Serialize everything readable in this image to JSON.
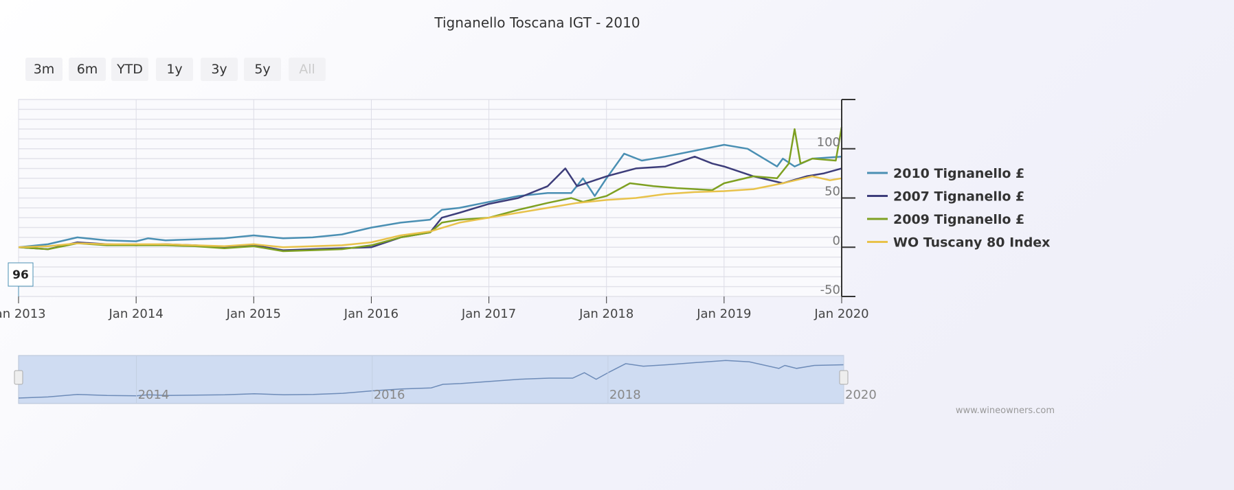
{
  "chart_data": {
    "type": "line",
    "title": "Tignanello Toscana IGT - 2010",
    "range_buttons": [
      "3m",
      "6m",
      "YTD",
      "1y",
      "3y",
      "5y",
      "All"
    ],
    "active_range": "All",
    "xlabel": "",
    "ylabel": "",
    "x_ticks": [
      "Jan 2013",
      "Jan 2014",
      "Jan 2015",
      "Jan 2016",
      "Jan 2017",
      "Jan 2018",
      "Jan 2019",
      "Jan 2020"
    ],
    "y_ticks": [
      -50,
      0,
      50,
      100
    ],
    "ylim": [
      -50,
      150
    ],
    "xlim": [
      "2013-01",
      "2020-01"
    ],
    "grid": true,
    "legend_position": "right",
    "flag_label": "96",
    "navigator_ticks": [
      "2014",
      "2016",
      "2018",
      "2020"
    ],
    "credit": "www.wineowners.com",
    "series": [
      {
        "name": "2010 Tignanello £",
        "color": "#4a8fb3",
        "points": [
          [
            2013.0,
            0
          ],
          [
            2013.25,
            3
          ],
          [
            2013.5,
            10
          ],
          [
            2013.75,
            7
          ],
          [
            2014.0,
            6
          ],
          [
            2014.1,
            9
          ],
          [
            2014.25,
            7
          ],
          [
            2014.5,
            8
          ],
          [
            2014.75,
            9
          ],
          [
            2015.0,
            12
          ],
          [
            2015.25,
            9
          ],
          [
            2015.5,
            10
          ],
          [
            2015.75,
            13
          ],
          [
            2016.0,
            20
          ],
          [
            2016.25,
            25
          ],
          [
            2016.5,
            28
          ],
          [
            2016.6,
            38
          ],
          [
            2016.75,
            40
          ],
          [
            2017.0,
            46
          ],
          [
            2017.25,
            52
          ],
          [
            2017.5,
            55
          ],
          [
            2017.7,
            55
          ],
          [
            2017.8,
            70
          ],
          [
            2017.9,
            52
          ],
          [
            2018.0,
            70
          ],
          [
            2018.15,
            95
          ],
          [
            2018.3,
            88
          ],
          [
            2018.5,
            92
          ],
          [
            2018.75,
            98
          ],
          [
            2019.0,
            104
          ],
          [
            2019.2,
            100
          ],
          [
            2019.45,
            82
          ],
          [
            2019.5,
            90
          ],
          [
            2019.6,
            82
          ],
          [
            2019.75,
            90
          ],
          [
            2020.0,
            92
          ]
        ]
      },
      {
        "name": "2007 Tignanello £",
        "color": "#3d3d7a",
        "points": [
          [
            2013.0,
            0
          ],
          [
            2013.25,
            -2
          ],
          [
            2013.5,
            5
          ],
          [
            2013.75,
            3
          ],
          [
            2014.0,
            2
          ],
          [
            2014.25,
            3
          ],
          [
            2014.5,
            2
          ],
          [
            2014.75,
            0
          ],
          [
            2015.0,
            2
          ],
          [
            2015.25,
            -3
          ],
          [
            2015.5,
            -2
          ],
          [
            2015.75,
            -1
          ],
          [
            2016.0,
            0
          ],
          [
            2016.25,
            10
          ],
          [
            2016.5,
            15
          ],
          [
            2016.6,
            30
          ],
          [
            2016.75,
            35
          ],
          [
            2017.0,
            44
          ],
          [
            2017.25,
            50
          ],
          [
            2017.5,
            62
          ],
          [
            2017.65,
            80
          ],
          [
            2017.75,
            62
          ],
          [
            2018.0,
            72
          ],
          [
            2018.25,
            80
          ],
          [
            2018.5,
            82
          ],
          [
            2018.75,
            92
          ],
          [
            2018.9,
            85
          ],
          [
            2019.0,
            82
          ],
          [
            2019.25,
            72
          ],
          [
            2019.5,
            65
          ],
          [
            2019.7,
            72
          ],
          [
            2019.85,
            75
          ],
          [
            2020.0,
            80
          ]
        ]
      },
      {
        "name": "2009 Tignanello £",
        "color": "#7ea021",
        "points": [
          [
            2013.0,
            0
          ],
          [
            2013.25,
            -2
          ],
          [
            2013.5,
            4
          ],
          [
            2013.75,
            2
          ],
          [
            2014.0,
            2
          ],
          [
            2014.25,
            2
          ],
          [
            2014.5,
            1
          ],
          [
            2014.75,
            -1
          ],
          [
            2015.0,
            1
          ],
          [
            2015.25,
            -4
          ],
          [
            2015.5,
            -3
          ],
          [
            2015.75,
            -2
          ],
          [
            2016.0,
            2
          ],
          [
            2016.25,
            10
          ],
          [
            2016.5,
            15
          ],
          [
            2016.6,
            25
          ],
          [
            2016.75,
            28
          ],
          [
            2017.0,
            30
          ],
          [
            2017.25,
            38
          ],
          [
            2017.5,
            45
          ],
          [
            2017.7,
            50
          ],
          [
            2017.8,
            46
          ],
          [
            2018.0,
            52
          ],
          [
            2018.2,
            65
          ],
          [
            2018.4,
            62
          ],
          [
            2018.6,
            60
          ],
          [
            2018.9,
            58
          ],
          [
            2019.0,
            65
          ],
          [
            2019.25,
            72
          ],
          [
            2019.45,
            70
          ],
          [
            2019.55,
            85
          ],
          [
            2019.6,
            120
          ],
          [
            2019.65,
            85
          ],
          [
            2019.75,
            90
          ],
          [
            2019.95,
            88
          ],
          [
            2020.0,
            122
          ]
        ]
      },
      {
        "name": "WO Tuscany 80 Index",
        "color": "#e8c24a",
        "points": [
          [
            2013.0,
            0
          ],
          [
            2013.25,
            1
          ],
          [
            2013.5,
            4
          ],
          [
            2013.75,
            3
          ],
          [
            2014.0,
            3
          ],
          [
            2014.25,
            3
          ],
          [
            2014.5,
            2
          ],
          [
            2014.75,
            1
          ],
          [
            2015.0,
            3
          ],
          [
            2015.25,
            0
          ],
          [
            2015.5,
            1
          ],
          [
            2015.75,
            2
          ],
          [
            2016.0,
            5
          ],
          [
            2016.25,
            12
          ],
          [
            2016.5,
            16
          ],
          [
            2016.75,
            25
          ],
          [
            2017.0,
            30
          ],
          [
            2017.25,
            35
          ],
          [
            2017.5,
            40
          ],
          [
            2017.75,
            45
          ],
          [
            2018.0,
            48
          ],
          [
            2018.25,
            50
          ],
          [
            2018.5,
            54
          ],
          [
            2018.75,
            56
          ],
          [
            2019.0,
            57
          ],
          [
            2019.25,
            59
          ],
          [
            2019.5,
            65
          ],
          [
            2019.75,
            72
          ],
          [
            2019.9,
            68
          ],
          [
            2020.0,
            70
          ]
        ]
      }
    ]
  }
}
